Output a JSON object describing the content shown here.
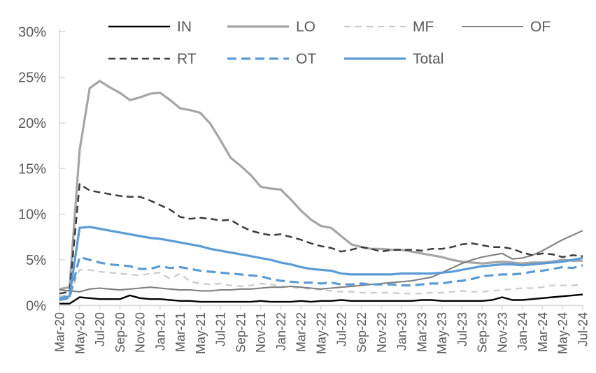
{
  "chart_data": {
    "type": "line",
    "title": "",
    "xlabel": "",
    "ylabel": "",
    "ylim": [
      0,
      30
    ],
    "yticks": [
      "0%",
      "5%",
      "10%",
      "15%",
      "20%",
      "25%",
      "30%"
    ],
    "ytick_values": [
      0,
      5,
      10,
      15,
      20,
      25,
      30
    ],
    "grid": false,
    "legend_position": "top",
    "legend_rows": [
      [
        "IN",
        "LO",
        "MF",
        "OF"
      ],
      [
        "RT",
        "OT",
        "Total"
      ]
    ],
    "x_label_every": 2,
    "axis_color": "#D9D9D9",
    "text_color": "#595959",
    "months": [
      "Mar-20",
      "Apr-20",
      "May-20",
      "Jun-20",
      "Jul-20",
      "Aug-20",
      "Sep-20",
      "Oct-20",
      "Nov-20",
      "Dec-20",
      "Jan-21",
      "Feb-21",
      "Mar-21",
      "Apr-21",
      "May-21",
      "Jun-21",
      "Jul-21",
      "Aug-21",
      "Sep-21",
      "Oct-21",
      "Nov-21",
      "Dec-21",
      "Jan-22",
      "Feb-22",
      "Mar-22",
      "Apr-22",
      "May-22",
      "Jun-22",
      "Jul-22",
      "Aug-22",
      "Sep-22",
      "Oct-22",
      "Nov-22",
      "Dec-22",
      "Jan-23",
      "Feb-23",
      "Mar-23",
      "Apr-23",
      "May-23",
      "Jun-23",
      "Jul-23",
      "Aug-23",
      "Sep-23",
      "Oct-23",
      "Nov-23",
      "Dec-23",
      "Jan-24",
      "Feb-24",
      "Mar-24",
      "Apr-24",
      "May-24",
      "Jun-24",
      "Jul-24"
    ],
    "series": [
      {
        "name": "IN",
        "color": "#000000",
        "style": "solid",
        "width": 2.4,
        "values": [
          0.2,
          0.2,
          0.9,
          0.8,
          0.7,
          0.7,
          0.7,
          1.1,
          0.8,
          0.7,
          0.7,
          0.6,
          0.5,
          0.5,
          0.4,
          0.4,
          0.4,
          0.4,
          0.4,
          0.4,
          0.5,
          0.4,
          0.4,
          0.4,
          0.5,
          0.4,
          0.5,
          0.5,
          0.6,
          0.5,
          0.5,
          0.5,
          0.5,
          0.5,
          0.5,
          0.5,
          0.6,
          0.6,
          0.5,
          0.5,
          0.5,
          0.5,
          0.5,
          0.6,
          0.9,
          0.6,
          0.6,
          0.7,
          0.8,
          0.9,
          1.0,
          1.1,
          1.2
        ]
      },
      {
        "name": "LO",
        "color": "#A5A5A5",
        "style": "solid",
        "width": 3.2,
        "values": [
          1.8,
          2.0,
          17.0,
          23.8,
          24.6,
          23.9,
          23.3,
          22.5,
          22.8,
          23.2,
          23.3,
          22.5,
          21.6,
          21.4,
          21.1,
          19.9,
          18.1,
          16.2,
          15.3,
          14.3,
          13.0,
          12.8,
          12.7,
          11.6,
          10.4,
          9.4,
          8.7,
          8.5,
          7.6,
          6.7,
          6.4,
          6.2,
          6.2,
          6.1,
          6.1,
          5.9,
          5.7,
          5.5,
          5.3,
          5.0,
          4.8,
          4.7,
          4.6,
          4.7,
          4.8,
          4.7,
          4.6,
          4.7,
          4.7,
          4.8,
          5.0,
          4.9,
          4.9
        ]
      },
      {
        "name": "MF",
        "color": "#C9C9C9",
        "style": "dashed",
        "width": 2.2,
        "values": [
          1.0,
          1.2,
          3.9,
          3.9,
          3.7,
          3.6,
          3.5,
          3.4,
          3.3,
          3.5,
          3.6,
          2.9,
          3.5,
          2.6,
          2.4,
          2.3,
          2.4,
          2.2,
          2.1,
          2.2,
          2.4,
          2.3,
          2.1,
          2.0,
          1.9,
          1.8,
          1.7,
          1.6,
          1.5,
          1.5,
          1.4,
          1.4,
          1.4,
          1.4,
          1.3,
          1.3,
          1.3,
          1.4,
          1.4,
          1.5,
          1.6,
          1.5,
          1.5,
          1.6,
          1.7,
          1.8,
          1.9,
          1.9,
          2.0,
          2.2,
          2.2,
          2.2,
          2.3
        ]
      },
      {
        "name": "OF",
        "color": "#7F7F7F",
        "style": "solid",
        "width": 2.1,
        "values": [
          1.7,
          1.6,
          1.5,
          1.8,
          1.9,
          1.8,
          1.7,
          1.8,
          1.9,
          2.0,
          1.9,
          1.8,
          1.7,
          1.7,
          1.6,
          1.6,
          1.7,
          1.7,
          1.8,
          1.8,
          1.9,
          2.0,
          2.0,
          2.1,
          2.0,
          1.9,
          1.8,
          1.9,
          2.0,
          2.1,
          2.2,
          2.3,
          2.4,
          2.5,
          2.6,
          2.7,
          2.9,
          3.1,
          3.6,
          4.1,
          4.6,
          5.0,
          5.3,
          5.5,
          5.7,
          5.1,
          5.2,
          5.5,
          6.0,
          6.6,
          7.2,
          7.7,
          8.2
        ]
      },
      {
        "name": "RT",
        "color": "#3B3B3B",
        "style": "dashed",
        "width": 2.5,
        "values": [
          1.3,
          1.5,
          13.3,
          12.6,
          12.4,
          12.2,
          12.0,
          11.9,
          11.9,
          11.5,
          11.0,
          10.5,
          9.7,
          9.5,
          9.6,
          9.5,
          9.3,
          9.4,
          8.7,
          8.2,
          7.9,
          7.7,
          7.8,
          7.5,
          7.2,
          6.8,
          6.5,
          6.3,
          5.9,
          6.1,
          6.4,
          6.2,
          5.9,
          6.1,
          6.1,
          6.1,
          6.0,
          6.2,
          6.2,
          6.4,
          6.7,
          6.8,
          6.6,
          6.4,
          6.4,
          6.2,
          5.8,
          5.5,
          5.7,
          5.6,
          5.3,
          5.5,
          5.4
        ]
      },
      {
        "name": "OT",
        "color": "#5B9BD5",
        "style": "dashed",
        "width": 3.2,
        "values": [
          0.6,
          0.8,
          5.3,
          5.0,
          4.7,
          4.5,
          4.4,
          4.3,
          4.0,
          4.0,
          4.3,
          4.1,
          4.2,
          4.0,
          3.8,
          3.7,
          3.6,
          3.5,
          3.4,
          3.3,
          3.2,
          2.9,
          2.7,
          2.6,
          2.5,
          2.5,
          2.4,
          2.5,
          2.3,
          2.3,
          2.4,
          2.3,
          2.3,
          2.3,
          2.2,
          2.2,
          2.3,
          2.4,
          2.4,
          2.6,
          2.7,
          2.9,
          3.2,
          3.3,
          3.4,
          3.4,
          3.5,
          3.7,
          3.8,
          4.0,
          4.2,
          4.1,
          4.4
        ]
      },
      {
        "name": "Total",
        "color": "#5B9BD5",
        "style": "solid",
        "width": 3.2,
        "values": [
          0.8,
          1.0,
          8.5,
          8.6,
          8.4,
          8.2,
          8.0,
          7.8,
          7.6,
          7.4,
          7.3,
          7.1,
          6.9,
          6.7,
          6.5,
          6.2,
          6.0,
          5.8,
          5.6,
          5.4,
          5.2,
          5.0,
          4.7,
          4.5,
          4.2,
          4.0,
          3.9,
          3.8,
          3.5,
          3.4,
          3.4,
          3.4,
          3.4,
          3.4,
          3.5,
          3.5,
          3.5,
          3.5,
          3.6,
          3.7,
          3.9,
          4.1,
          4.3,
          4.4,
          4.5,
          4.5,
          4.4,
          4.5,
          4.6,
          4.7,
          4.8,
          5.0,
          5.2
        ]
      }
    ]
  }
}
